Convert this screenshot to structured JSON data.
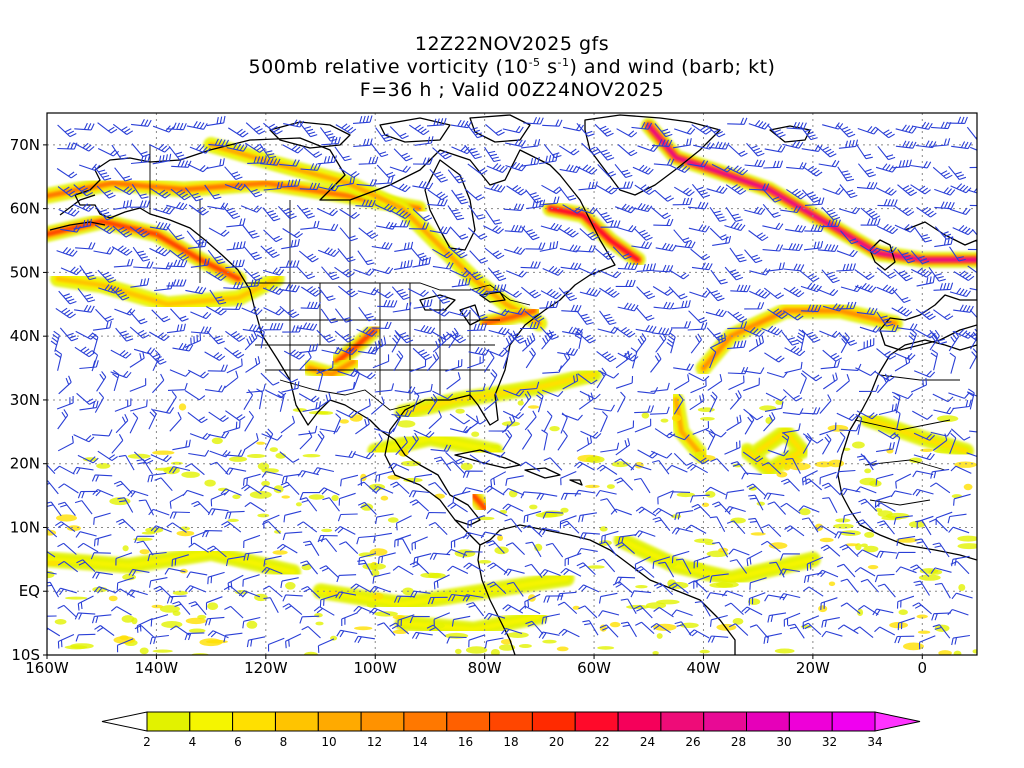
{
  "header": {
    "line1": "12Z22NOV2025 gfs",
    "line2_prefix": "500mb relative vorticity (10",
    "line2_exp1": "-5",
    "line2_mid": " s",
    "line2_exp2": "-1",
    "line2_suffix": ") and wind (barb; kt)",
    "line3": "F=36 h ; Valid 00Z24NOV2025"
  },
  "map": {
    "lat_labels": [
      "70N",
      "60N",
      "50N",
      "40N",
      "30N",
      "20N",
      "10N",
      "EQ",
      "10S"
    ],
    "lon_labels": [
      "160W",
      "140W",
      "120W",
      "100W",
      "80W",
      "60W",
      "40W",
      "20W",
      "0"
    ],
    "lat_values": [
      70,
      60,
      50,
      40,
      30,
      20,
      10,
      0,
      -10
    ],
    "lon_values": [
      -160,
      -140,
      -120,
      -100,
      -80,
      -60,
      -40,
      -20,
      0
    ],
    "extent": {
      "lon_min": -160,
      "lon_max": 10,
      "lat_min": -10,
      "lat_max": 75
    },
    "barb_color": "#2a3fd6",
    "coast_color": "#000000"
  },
  "colorbar": {
    "ticks": [
      "2",
      "4",
      "6",
      "8",
      "10",
      "12",
      "14",
      "16",
      "18",
      "20",
      "22",
      "24",
      "26",
      "28",
      "30",
      "32",
      "34"
    ],
    "colors": [
      "#e2f200",
      "#f5f500",
      "#ffe000",
      "#ffc400",
      "#ffaa00",
      "#ff9200",
      "#ff7800",
      "#ff6000",
      "#ff4600",
      "#ff2a00",
      "#ff0a2a",
      "#f5005a",
      "#ee0c78",
      "#e80a95",
      "#e600b9",
      "#ee00d8",
      "#f000f0"
    ],
    "under_color": "#ffffff",
    "over_color": "#ff33ff"
  },
  "vorticity_bands": [
    {
      "pts": [
        [
          -160,
          56
        ],
        [
          -150,
          58
        ],
        [
          -140,
          56
        ],
        [
          -132,
          52
        ],
        [
          -125,
          49
        ]
      ],
      "v": 18
    },
    {
      "pts": [
        [
          -158,
          49
        ],
        [
          -150,
          48
        ],
        [
          -138,
          45
        ],
        [
          -125,
          46
        ],
        [
          -118,
          49
        ]
      ],
      "v": 8
    },
    {
      "pts": [
        [
          -160,
          62
        ],
        [
          -148,
          64
        ],
        [
          -135,
          63
        ],
        [
          -120,
          64
        ],
        [
          -105,
          62
        ],
        [
          -92,
          60
        ]
      ],
      "v": 14
    },
    {
      "pts": [
        [
          -130,
          70
        ],
        [
          -118,
          67
        ],
        [
          -105,
          64
        ],
        [
          -95,
          60
        ],
        [
          -88,
          54
        ],
        [
          -82,
          49
        ],
        [
          -76,
          45
        ],
        [
          -70,
          42
        ]
      ],
      "v": 10
    },
    {
      "pts": [
        [
          -107,
          36
        ],
        [
          -104,
          38
        ],
        [
          -100,
          41
        ]
      ],
      "v": 18
    },
    {
      "pts": [
        [
          -112,
          35
        ],
        [
          -108,
          34
        ],
        [
          -104,
          36
        ]
      ],
      "v": 12
    },
    {
      "pts": [
        [
          -80,
          42
        ],
        [
          -75,
          43
        ],
        [
          -71,
          44
        ]
      ],
      "v": 16
    },
    {
      "pts": [
        [
          -68,
          60
        ],
        [
          -62,
          59
        ],
        [
          -57,
          55
        ],
        [
          -52,
          52
        ]
      ],
      "v": 22
    },
    {
      "pts": [
        [
          -50,
          73
        ],
        [
          -45,
          68
        ],
        [
          -38,
          66
        ],
        [
          -28,
          63
        ],
        [
          -18,
          58
        ],
        [
          -8,
          53
        ],
        [
          0,
          52
        ],
        [
          10,
          52
        ]
      ],
      "v": 26
    },
    {
      "pts": [
        [
          -40,
          35
        ],
        [
          -35,
          40
        ],
        [
          -25,
          44
        ],
        [
          -15,
          44
        ],
        [
          -5,
          42
        ]
      ],
      "v": 12
    },
    {
      "pts": [
        [
          -45,
          30
        ],
        [
          -44,
          25
        ],
        [
          -40,
          21
        ]
      ],
      "v": 10
    },
    {
      "pts": [
        [
          -30,
          22
        ],
        [
          -25,
          25
        ],
        [
          -22,
          22
        ],
        [
          -28,
          19
        ],
        [
          -32,
          22
        ]
      ],
      "v": 6
    },
    {
      "pts": [
        [
          -95,
          28
        ],
        [
          -85,
          30
        ],
        [
          -70,
          32
        ],
        [
          -60,
          34
        ]
      ],
      "v": 6
    },
    {
      "pts": [
        [
          -100,
          22
        ],
        [
          -90,
          24
        ],
        [
          -78,
          22
        ]
      ],
      "v": 4
    },
    {
      "pts": [
        [
          -160,
          5
        ],
        [
          -145,
          4
        ],
        [
          -130,
          6
        ],
        [
          -115,
          3
        ]
      ],
      "v": 4
    },
    {
      "pts": [
        [
          -110,
          0
        ],
        [
          -95,
          -2
        ],
        [
          -80,
          0
        ],
        [
          -65,
          2
        ]
      ],
      "v": 4
    },
    {
      "pts": [
        [
          -55,
          8
        ],
        [
          -45,
          4
        ],
        [
          -35,
          2
        ],
        [
          -20,
          5
        ]
      ],
      "v": 4
    },
    {
      "pts": [
        [
          -82,
          15
        ],
        [
          -80,
          13
        ]
      ],
      "v": 18
    },
    {
      "pts": [
        [
          -10,
          27
        ],
        [
          0,
          24
        ],
        [
          8,
          22
        ]
      ],
      "v": 6
    },
    {
      "pts": [
        [
          -95,
          -5
        ],
        [
          -82,
          -6
        ],
        [
          -70,
          -4
        ]
      ],
      "v": 4
    }
  ]
}
